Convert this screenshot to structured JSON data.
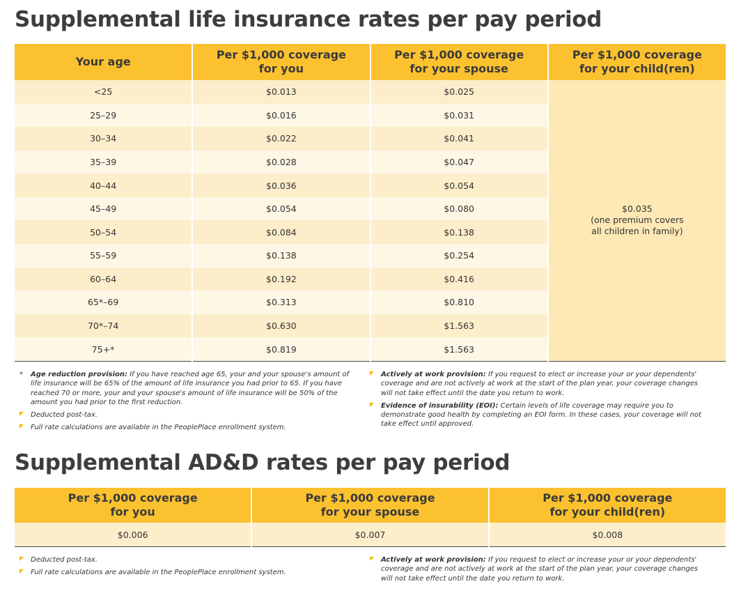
{
  "life": {
    "title": "Supplemental life insurance rates per pay period",
    "headers": [
      [
        "Your age"
      ],
      [
        "Per $1,000 coverage",
        "for you"
      ],
      [
        "Per $1,000 coverage",
        "for your spouse"
      ],
      [
        "Per $1,000 coverage",
        "for your child(ren)"
      ]
    ],
    "rows": [
      [
        "<25",
        "$0.013",
        "$0.025"
      ],
      [
        "25–29",
        "$0.016",
        "$0.031"
      ],
      [
        "30–34",
        "$0.022",
        "$0.041"
      ],
      [
        "35–39",
        "$0.028",
        "$0.047"
      ],
      [
        "40–44",
        "$0.036",
        "$0.054"
      ],
      [
        "45–49",
        "$0.054",
        "$0.080"
      ],
      [
        "50–54",
        "$0.084",
        "$0.138"
      ],
      [
        "55–59",
        "$0.138",
        "$0.254"
      ],
      [
        "60–64",
        "$0.192",
        "$0.416"
      ],
      [
        "65*–69",
        "$0.313",
        "$0.810"
      ],
      [
        "70*–74",
        "$0.630",
        "$1.563"
      ],
      [
        "75+*",
        "$0.819",
        "$1.563"
      ]
    ],
    "child_rate": "$0.035",
    "child_note": [
      "(one premium covers",
      "all children in family)"
    ],
    "notes_left": [
      {
        "marker": "*",
        "lead": "Age reduction provision:",
        "text": " If you have reached age 65, your and your spouse's amount of life insurance will be 65% of the amount of life insurance you had prior to 65. If you have reached 70 or more, your and your spouse's amount of life insurance will be 50% of the amount you had prior to the first reduction."
      },
      {
        "text": "Deducted post-tax."
      },
      {
        "text": "Full rate calculations are available in the PeoplePlace enrollment system."
      }
    ],
    "notes_right": [
      {
        "lead": "Actively at work provision:",
        "text": " If you request to elect or increase your or your dependents' coverage and are not actively at work at the start of the plan year, your coverage changes will not take effect until the date you return to work."
      },
      {
        "lead": "Evidence of insurability (EOI):",
        "text": " Certain levels of life coverage may require you to demonstrate good health by completing an EOI form. In these cases, your coverage will not take effect until approved."
      }
    ]
  },
  "add": {
    "title": "Supplemental AD&D rates per pay period",
    "headers": [
      [
        "Per $1,000 coverage",
        "for you"
      ],
      [
        "Per $1,000 coverage",
        "for your spouse"
      ],
      [
        "Per $1,000 coverage",
        "for your child(ren)"
      ]
    ],
    "rows": [
      [
        "$0.006",
        "$0.007",
        "$0.008"
      ]
    ],
    "notes_left": [
      {
        "text": "Deducted post-tax."
      },
      {
        "text": "Full rate calculations are available in the PeoplePlace enrollment system."
      }
    ],
    "notes_right": [
      {
        "lead": "Actively at work provision:",
        "text": " If you request to elect or increase your or your dependents' coverage and are not actively at work at the start of the plan year, your coverage changes will not take effect until the date you return to work."
      }
    ]
  }
}
